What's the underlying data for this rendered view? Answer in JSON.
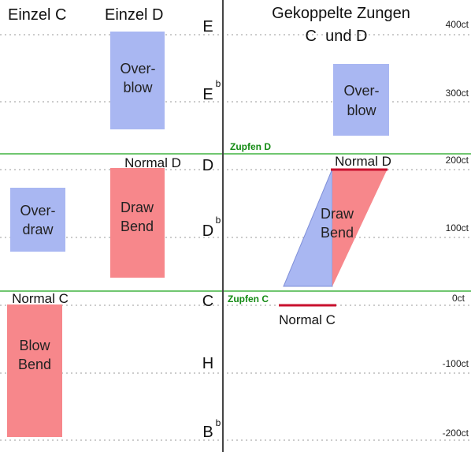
{
  "headers": {
    "single_c": "Einzel C",
    "single_d": "Einzel D",
    "coupled_line1": "Gekoppelte Zungen",
    "coupled_line2": "C  und D"
  },
  "notes": {
    "e": "E",
    "e_flat": "E",
    "e_flat_sup": "b",
    "d": "D",
    "d_flat": "D",
    "d_flat_sup": "b",
    "c": "C",
    "h": "H",
    "b_flat": "B",
    "b_flat_sup": "b"
  },
  "cents": [
    "400ct",
    "300ct",
    "200ct",
    "100ct",
    "0ct",
    "-100ct",
    "-200ct"
  ],
  "labels": {
    "overblow_left_1": "Over-",
    "overblow_left_2": "blow",
    "overblow_right_1": "Over-",
    "overblow_right_2": "blow",
    "overdraw_1": "Over-",
    "overdraw_2": "draw",
    "draw_bend_left_1": "Draw",
    "draw_bend_left_2": "Bend",
    "draw_bend_right_1": "Draw",
    "draw_bend_right_2": "Bend",
    "blow_bend_1": "Blow",
    "blow_bend_2": "Bend",
    "normal_d_left": "Normal D",
    "normal_d_right": "Normal D",
    "normal_c_left": "Normal C",
    "normal_c_right": "Normal C",
    "zupfen_d": "Zupfen D",
    "zupfen_c": "Zupfen C"
  },
  "colors": {
    "blue_fill": "#a9b7f2",
    "red_fill": "#f7878b",
    "green_line": "#1aa31a",
    "green_text": "#138a13",
    "red_line": "#c8102e",
    "grid_dots": "#9a9a9a",
    "divider": "#444444"
  }
}
